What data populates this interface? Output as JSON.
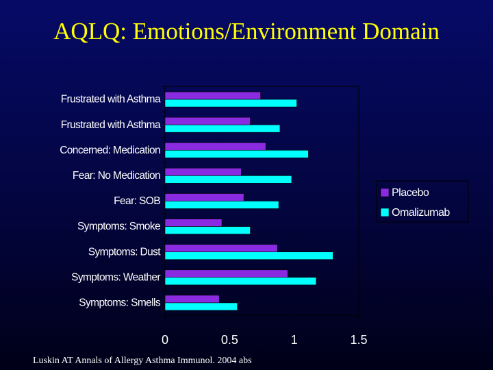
{
  "slide": {
    "title": "AQLQ: Emotions/Environment Domain",
    "citation": "Luskin AT Annals of Allergy Asthma Immunol. 2004 abs"
  },
  "colors": {
    "background": "#04075a",
    "title": "#ffff00",
    "placebo": "#8a2be2",
    "omalizumab": "#00ffff",
    "text": "#ffffff"
  },
  "chart_data": {
    "type": "bar",
    "orientation": "horizontal",
    "title": "",
    "xlabel": "",
    "ylabel": "",
    "xlim": [
      0,
      1.5
    ],
    "xticks": [
      0,
      0.5,
      1,
      1.5
    ],
    "xtick_labels": [
      "0",
      "0.5",
      "1",
      "1.5"
    ],
    "grid": false,
    "legend_position": "right",
    "categories": [
      "Frustrated with Asthma",
      "Frustrated with Asthma",
      "Concerned: Medication",
      "Fear: No Medication",
      "Fear: SOB",
      "Symptoms: Smoke",
      "Symptoms: Dust",
      "Symptoms: Weather",
      "Symptoms: Smells"
    ],
    "series": [
      {
        "name": "Placebo",
        "color": "#8a2be2",
        "values": [
          0.74,
          0.66,
          0.78,
          0.59,
          0.61,
          0.44,
          0.87,
          0.95,
          0.42
        ]
      },
      {
        "name": "Omalizumab",
        "color": "#00ffff",
        "values": [
          1.02,
          0.89,
          1.11,
          0.98,
          0.88,
          0.66,
          1.3,
          1.17,
          0.56
        ]
      }
    ]
  }
}
